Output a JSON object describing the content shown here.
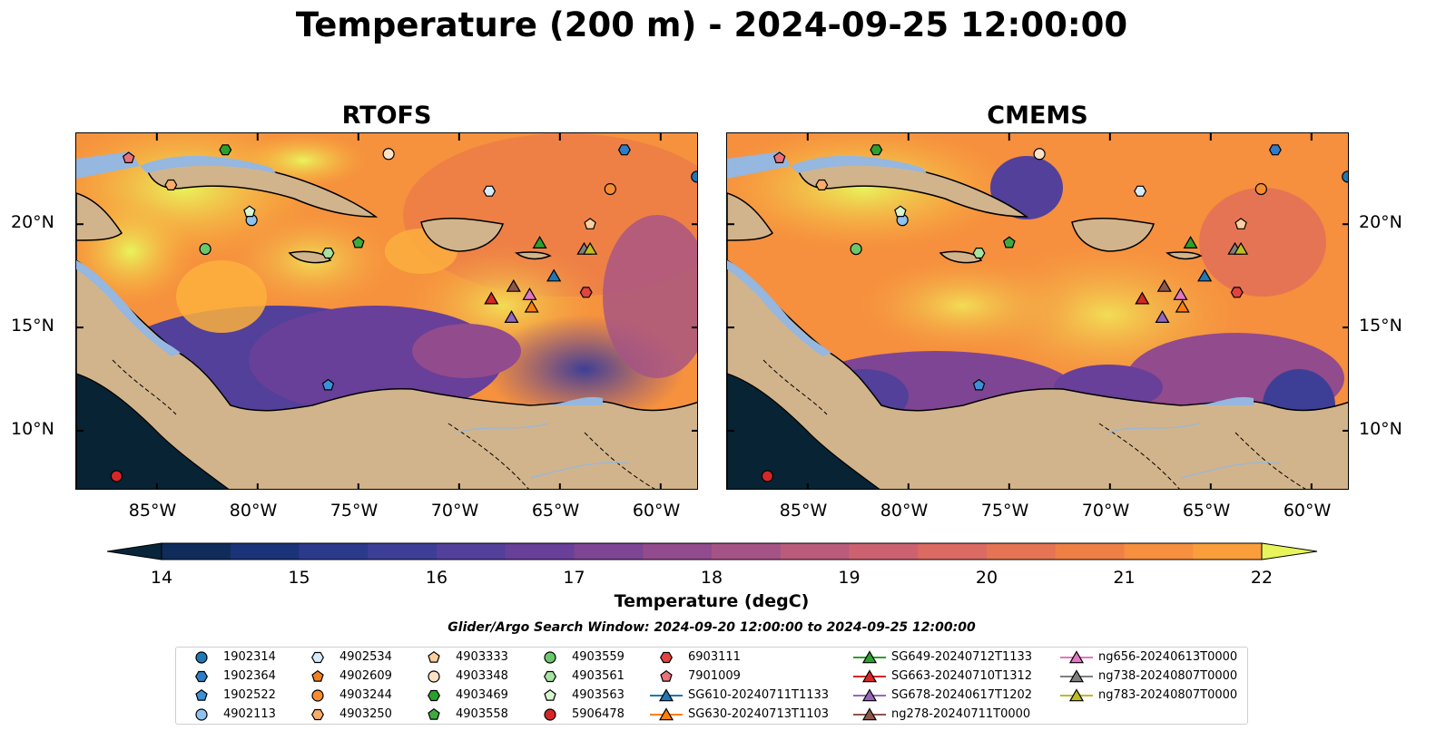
{
  "figure": {
    "title": "Temperature (200 m) - 2024-09-25 12:00:00",
    "panels": [
      {
        "title": "RTOFS"
      },
      {
        "title": "CMEMS"
      }
    ],
    "lon_ticks": [
      "85°W",
      "80°W",
      "75°W",
      "70°W",
      "65°W",
      "60°W"
    ],
    "lat_ticks": [
      "20°N",
      "15°N",
      "10°N"
    ],
    "colorbar": {
      "label": "Temperature (degC)",
      "min": 14,
      "max": 22,
      "step": 0.5,
      "ticks": [
        "14",
        "15",
        "16",
        "17",
        "18",
        "19",
        "20",
        "21",
        "22"
      ],
      "colors": [
        "#08253a",
        "#0f2c5a",
        "#1b3378",
        "#2c3a8c",
        "#3d3f96",
        "#52409a",
        "#683f99",
        "#7e4594",
        "#924b8c",
        "#a55386",
        "#ba5b7b",
        "#cc6270",
        "#db6a63",
        "#e57454",
        "#ee8046",
        "#f68f3e",
        "#fa9e3b",
        "#fcb03d",
        "#f9c747",
        "#f2dd55",
        "#e8f45c"
      ],
      "extend": "both"
    },
    "search_window": "Glider/Argo Search Window: 2024-09-20 12:00:00 to 2024-09-25 12:00:00",
    "map_colors": {
      "land": "#d2b48c",
      "shelf": "#95b7e0",
      "deep_pacific": "#072334"
    }
  },
  "legend": [
    {
      "label": "1902314",
      "marker": "circle",
      "color": "#1f77b4"
    },
    {
      "label": "1902364",
      "marker": "hexagon",
      "color": "#2e7dc9"
    },
    {
      "label": "1902522",
      "marker": "pentagon",
      "color": "#3d8fd9"
    },
    {
      "label": "4902113",
      "marker": "circle",
      "color": "#8fc3ee"
    },
    {
      "label": "4902534",
      "marker": "hexagon",
      "color": "#d6ecfb"
    },
    {
      "label": "4902609",
      "marker": "pentagon",
      "color": "#f08020"
    },
    {
      "label": "4903244",
      "marker": "circle",
      "color": "#f48d31"
    },
    {
      "label": "4903250",
      "marker": "hexagon",
      "color": "#f8ad6b"
    },
    {
      "label": "4903333",
      "marker": "pentagon",
      "color": "#fbcf9e"
    },
    {
      "label": "4903348",
      "marker": "circle",
      "color": "#fde2c6"
    },
    {
      "label": "4903469",
      "marker": "hexagon",
      "color": "#2ca02c"
    },
    {
      "label": "4903558",
      "marker": "pentagon",
      "color": "#3daa3d"
    },
    {
      "label": "4903559",
      "marker": "circle",
      "color": "#6bc76b"
    },
    {
      "label": "4903561",
      "marker": "hexagon",
      "color": "#a7e3a0"
    },
    {
      "label": "4903563",
      "marker": "pentagon",
      "color": "#d7f5cf"
    },
    {
      "label": "5906478",
      "marker": "circle",
      "color": "#d62728"
    },
    {
      "label": "6903111",
      "marker": "hexagon",
      "color": "#e0443f"
    },
    {
      "label": "7901009",
      "marker": "pentagon",
      "color": "#e9727a"
    },
    {
      "label": "SG610-20240711T1133",
      "marker": "triangle",
      "color": "#1f77b4",
      "line": true
    },
    {
      "label": "SG630-20240713T1103",
      "marker": "triangle",
      "color": "#ff7f0e",
      "line": true
    },
    {
      "label": "SG649-20240712T1133",
      "marker": "triangle",
      "color": "#2ca02c",
      "line": true
    },
    {
      "label": "SG663-20240710T1312",
      "marker": "triangle",
      "color": "#d62728",
      "line": true
    },
    {
      "label": "SG678-20240617T1202",
      "marker": "triangle",
      "color": "#9467bd",
      "line": true
    },
    {
      "label": "ng278-20240711T0000",
      "marker": "triangle",
      "color": "#8c564b",
      "line": true
    },
    {
      "label": "ng656-20240613T0000",
      "marker": "triangle",
      "color": "#e377c2",
      "line": true
    },
    {
      "label": "ng738-20240807T0000",
      "marker": "triangle",
      "color": "#7f7f7f",
      "line": true
    },
    {
      "label": "ng783-20240807T0000",
      "marker": "triangle",
      "color": "#bcbd22",
      "line": true
    }
  ],
  "observations": [
    {
      "id": "1902314",
      "lon": -58.2,
      "lat": 22.3
    },
    {
      "id": "1902364",
      "lon": -61.8,
      "lat": 23.6
    },
    {
      "id": "1902522",
      "lon": -76.5,
      "lat": 12.2
    },
    {
      "id": "4902113",
      "lon": -80.3,
      "lat": 20.2
    },
    {
      "id": "4902534",
      "lon": -68.5,
      "lat": 21.6
    },
    {
      "id": "4902609",
      "lon": -75.0,
      "lat": 19.1
    },
    {
      "id": "4903244",
      "lon": -62.5,
      "lat": 21.7
    },
    {
      "id": "4903250",
      "lon": -84.3,
      "lat": 21.9
    },
    {
      "id": "4903333",
      "lon": -63.5,
      "lat": 20.0
    },
    {
      "id": "4903348",
      "lon": -73.5,
      "lat": 23.4
    },
    {
      "id": "4903469",
      "lon": -81.6,
      "lat": 23.6
    },
    {
      "id": "4903558",
      "lon": -75.0,
      "lat": 19.1
    },
    {
      "id": "4903559",
      "lon": -82.6,
      "lat": 18.8
    },
    {
      "id": "4903561",
      "lon": -76.5,
      "lat": 18.6
    },
    {
      "id": "4903563",
      "lon": -80.4,
      "lat": 20.6
    },
    {
      "id": "5906478",
      "lon": -87.0,
      "lat": 7.8
    },
    {
      "id": "6903111",
      "lon": -63.7,
      "lat": 16.7
    },
    {
      "id": "7901009",
      "lon": -86.4,
      "lat": 23.2
    },
    {
      "id": "SG610-20240711T1133",
      "lon": -65.3,
      "lat": 17.5
    },
    {
      "id": "SG630-20240713T1103",
      "lon": -66.4,
      "lat": 16.0
    },
    {
      "id": "SG649-20240712T1133",
      "lon": -66.0,
      "lat": 19.1
    },
    {
      "id": "SG663-20240710T1312",
      "lon": -68.4,
      "lat": 16.4
    },
    {
      "id": "SG678-20240617T1202",
      "lon": -67.4,
      "lat": 15.5
    },
    {
      "id": "ng278-20240711T0000",
      "lon": -67.3,
      "lat": 17.0
    },
    {
      "id": "ng656-20240613T0000",
      "lon": -66.5,
      "lat": 16.6
    },
    {
      "id": "ng738-20240807T0000",
      "lon": -63.8,
      "lat": 18.8
    },
    {
      "id": "ng783-20240807T0000",
      "lon": -63.5,
      "lat": 18.8
    }
  ]
}
